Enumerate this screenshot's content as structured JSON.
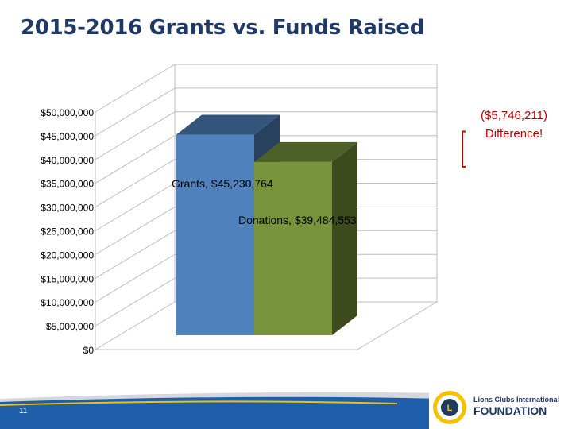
{
  "title": "2015-2016 Grants vs. Funds Raised",
  "chart_data": {
    "type": "bar",
    "categories": [
      "Grants",
      "Donations"
    ],
    "values": [
      45230764,
      39484553
    ],
    "data_labels": [
      "Grants, $45,230,764",
      "Donations, $39,484,553"
    ],
    "colors": [
      "#4f81bd",
      "#77933c"
    ],
    "y_tick_labels": [
      "$0",
      "$5,000,000",
      "$10,000,000",
      "$15,000,000",
      "$20,000,000",
      "$25,000,000",
      "$30,000,000",
      "$35,000,000",
      "$40,000,000",
      "$45,000,000",
      "$50,000,000"
    ],
    "ylim": [
      0,
      50000000
    ],
    "grid": true,
    "three_d": true,
    "annotation": {
      "line1": "($5,746,211)",
      "line2": "Difference!",
      "color": "#c00000"
    }
  },
  "footer": {
    "page_number": "11",
    "logo_line1": "Lions Clubs International",
    "logo_line2": "FOUNDATION"
  }
}
